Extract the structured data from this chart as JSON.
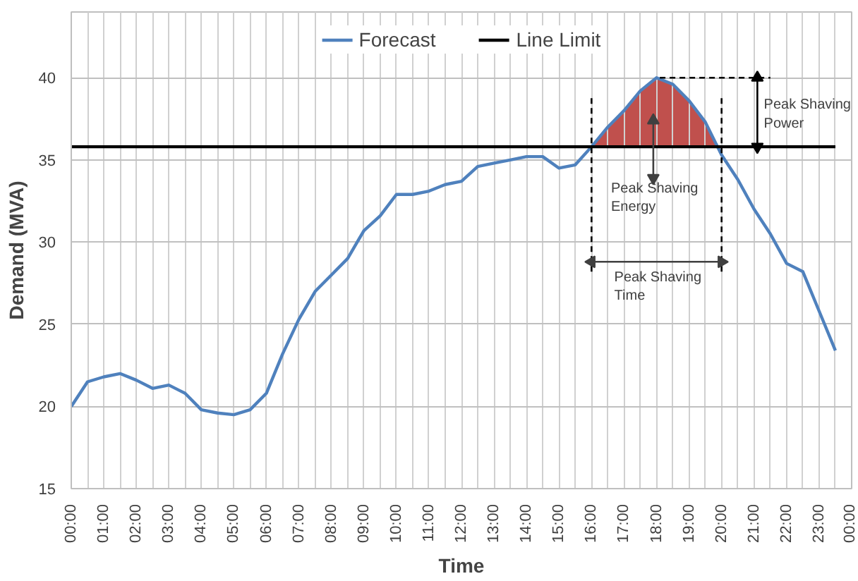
{
  "chart_data": {
    "type": "line",
    "xlabel": "Time",
    "ylabel": "Demand (MVA)",
    "xlim": [
      0,
      24
    ],
    "ylim": [
      15,
      44
    ],
    "yticks": [
      15,
      20,
      25,
      30,
      35,
      40
    ],
    "xticks": [
      {
        "value": 0,
        "label": "00:00"
      },
      {
        "value": 0.5,
        "label": null
      },
      {
        "value": 1,
        "label": "01:00"
      },
      {
        "value": 1.5,
        "label": null
      },
      {
        "value": 2,
        "label": "02:00"
      },
      {
        "value": 2.5,
        "label": null
      },
      {
        "value": 3,
        "label": "03:00"
      },
      {
        "value": 3.5,
        "label": null
      },
      {
        "value": 4,
        "label": "04:00"
      },
      {
        "value": 4.5,
        "label": null
      },
      {
        "value": 5,
        "label": "05:00"
      },
      {
        "value": 5.5,
        "label": null
      },
      {
        "value": 6,
        "label": "06:00"
      },
      {
        "value": 6.5,
        "label": null
      },
      {
        "value": 7,
        "label": "07:00"
      },
      {
        "value": 7.5,
        "label": null
      },
      {
        "value": 8,
        "label": "08:00"
      },
      {
        "value": 8.5,
        "label": null
      },
      {
        "value": 9,
        "label": "09:00"
      },
      {
        "value": 9.5,
        "label": null
      },
      {
        "value": 10,
        "label": "10:00"
      },
      {
        "value": 10.5,
        "label": null
      },
      {
        "value": 11,
        "label": "11:00"
      },
      {
        "value": 11.5,
        "label": null
      },
      {
        "value": 12,
        "label": "12:00"
      },
      {
        "value": 12.5,
        "label": null
      },
      {
        "value": 13,
        "label": "13:00"
      },
      {
        "value": 13.5,
        "label": null
      },
      {
        "value": 14,
        "label": "14:00"
      },
      {
        "value": 14.5,
        "label": null
      },
      {
        "value": 15,
        "label": "15:00"
      },
      {
        "value": 15.5,
        "label": null
      },
      {
        "value": 16,
        "label": "16:00"
      },
      {
        "value": 16.5,
        "label": null
      },
      {
        "value": 17,
        "label": "17:00"
      },
      {
        "value": 17.5,
        "label": null
      },
      {
        "value": 18,
        "label": "18:00"
      },
      {
        "value": 18.5,
        "label": null
      },
      {
        "value": 19,
        "label": "19:00"
      },
      {
        "value": 19.5,
        "label": null
      },
      {
        "value": 20,
        "label": "20:00"
      },
      {
        "value": 20.5,
        "label": null
      },
      {
        "value": 21,
        "label": "21:00"
      },
      {
        "value": 21.5,
        "label": null
      },
      {
        "value": 22,
        "label": "22:00"
      },
      {
        "value": 22.5,
        "label": null
      },
      {
        "value": 23,
        "label": "23:00"
      },
      {
        "value": 23.5,
        "label": null
      },
      {
        "value": 24,
        "label": "00:00"
      }
    ],
    "grid": true,
    "legend": "top",
    "series": [
      {
        "name": "Forecast",
        "color": "#4f81bd",
        "x": [
          0,
          0.5,
          1,
          1.5,
          2,
          2.5,
          3,
          3.5,
          4,
          4.5,
          5,
          5.5,
          6,
          6.5,
          7,
          7.5,
          8,
          8.5,
          9,
          9.5,
          10,
          10.5,
          11,
          11.5,
          12,
          12.5,
          13,
          13.5,
          14,
          14.5,
          15,
          15.5,
          16,
          16.5,
          17,
          17.5,
          18,
          18.5,
          19,
          19.5,
          20,
          20.5,
          21,
          21.5,
          22,
          22.5,
          23,
          23.5
        ],
        "values": [
          20.0,
          21.5,
          21.8,
          22.0,
          21.6,
          21.1,
          21.3,
          20.8,
          19.8,
          19.6,
          19.5,
          19.8,
          20.8,
          23.2,
          25.3,
          27.0,
          28.0,
          29.0,
          30.7,
          31.6,
          32.9,
          32.9,
          33.1,
          33.5,
          33.7,
          34.6,
          34.8,
          35.0,
          35.2,
          35.2,
          34.5,
          34.7,
          35.8,
          37.0,
          38.0,
          39.2,
          40.0,
          39.6,
          38.6,
          37.3,
          35.3,
          33.8,
          32.0,
          30.5,
          28.7,
          28.2,
          25.8,
          23.4
        ]
      },
      {
        "name": "Line Limit",
        "color": "#000000",
        "x": [
          0,
          23.5
        ],
        "values": [
          35.8,
          35.8
        ]
      },
      {
        "type": "area",
        "color": "#c0504d",
        "x": [
          16,
          16.5,
          17,
          17.5,
          18,
          18.5,
          19,
          19.5,
          19.85
        ],
        "values": [
          35.8,
          37.0,
          38.0,
          39.2,
          40.0,
          39.6,
          38.6,
          37.3,
          35.8
        ]
      },
      {
        "color": "#000000",
        "line_style": "dashed",
        "x": [
          16,
          16
        ],
        "values": [
          28.2,
          39.0
        ]
      },
      {
        "color": "#000000",
        "line_style": "dashed",
        "x": [
          20,
          20
        ],
        "values": [
          28.2,
          39.0
        ]
      },
      {
        "color": "#000000",
        "line_style": "dashed",
        "x": [
          18.1,
          21.5
        ],
        "values": [
          40,
          40
        ]
      },
      {
        "color": "#000000",
        "marker": "triangle",
        "x": [
          21.1,
          21.1
        ],
        "values": [
          35.8,
          40
        ]
      },
      {
        "color": "#404040",
        "marker": "triangle",
        "x": [
          17.9,
          17.9
        ],
        "values": [
          33.9,
          37.4
        ]
      },
      {
        "color": "#404040",
        "marker": "triangle",
        "x": [
          16,
          20
        ],
        "values": [
          28.8,
          28.8
        ]
      }
    ],
    "annotations": [
      {
        "text": "Peak Shaving\nPower",
        "x": 21.3,
        "y": 38.8
      },
      "Peak Shaving\nEnergy",
      "Peak Shaving\nTime"
    ]
  }
}
